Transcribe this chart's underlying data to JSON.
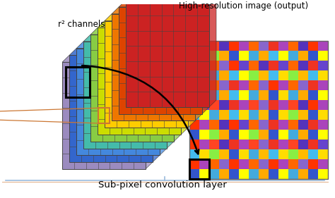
{
  "title": "Sub-pixel convolution layer",
  "label_channels": "r² channels",
  "label_output": "High-resolution image (output)",
  "bg_color": "#ffffff",
  "layer_colors": [
    "#cc2222",
    "#dd4400",
    "#ee7700",
    "#ffcc00",
    "#ccdd00",
    "#88cc44",
    "#44bbaa",
    "#4488dd",
    "#3366cc",
    "#334499"
  ],
  "front_face_color": "#9b8bbf",
  "grid_rows": 7,
  "grid_cols": 7,
  "n_layers": 10,
  "hr_rows": 14,
  "hr_cols": 14,
  "orange_color": "#cc7733",
  "hr_colors_cycle": [
    "#3355cc",
    "#44aadd",
    "#88ee44",
    "#ffff00",
    "#ffaa00",
    "#ff4400",
    "#ff2244",
    "#cc44cc",
    "#88aaee",
    "#ff8844",
    "#44ccff",
    "#ffdd44",
    "#ee4422",
    "#7744cc"
  ]
}
